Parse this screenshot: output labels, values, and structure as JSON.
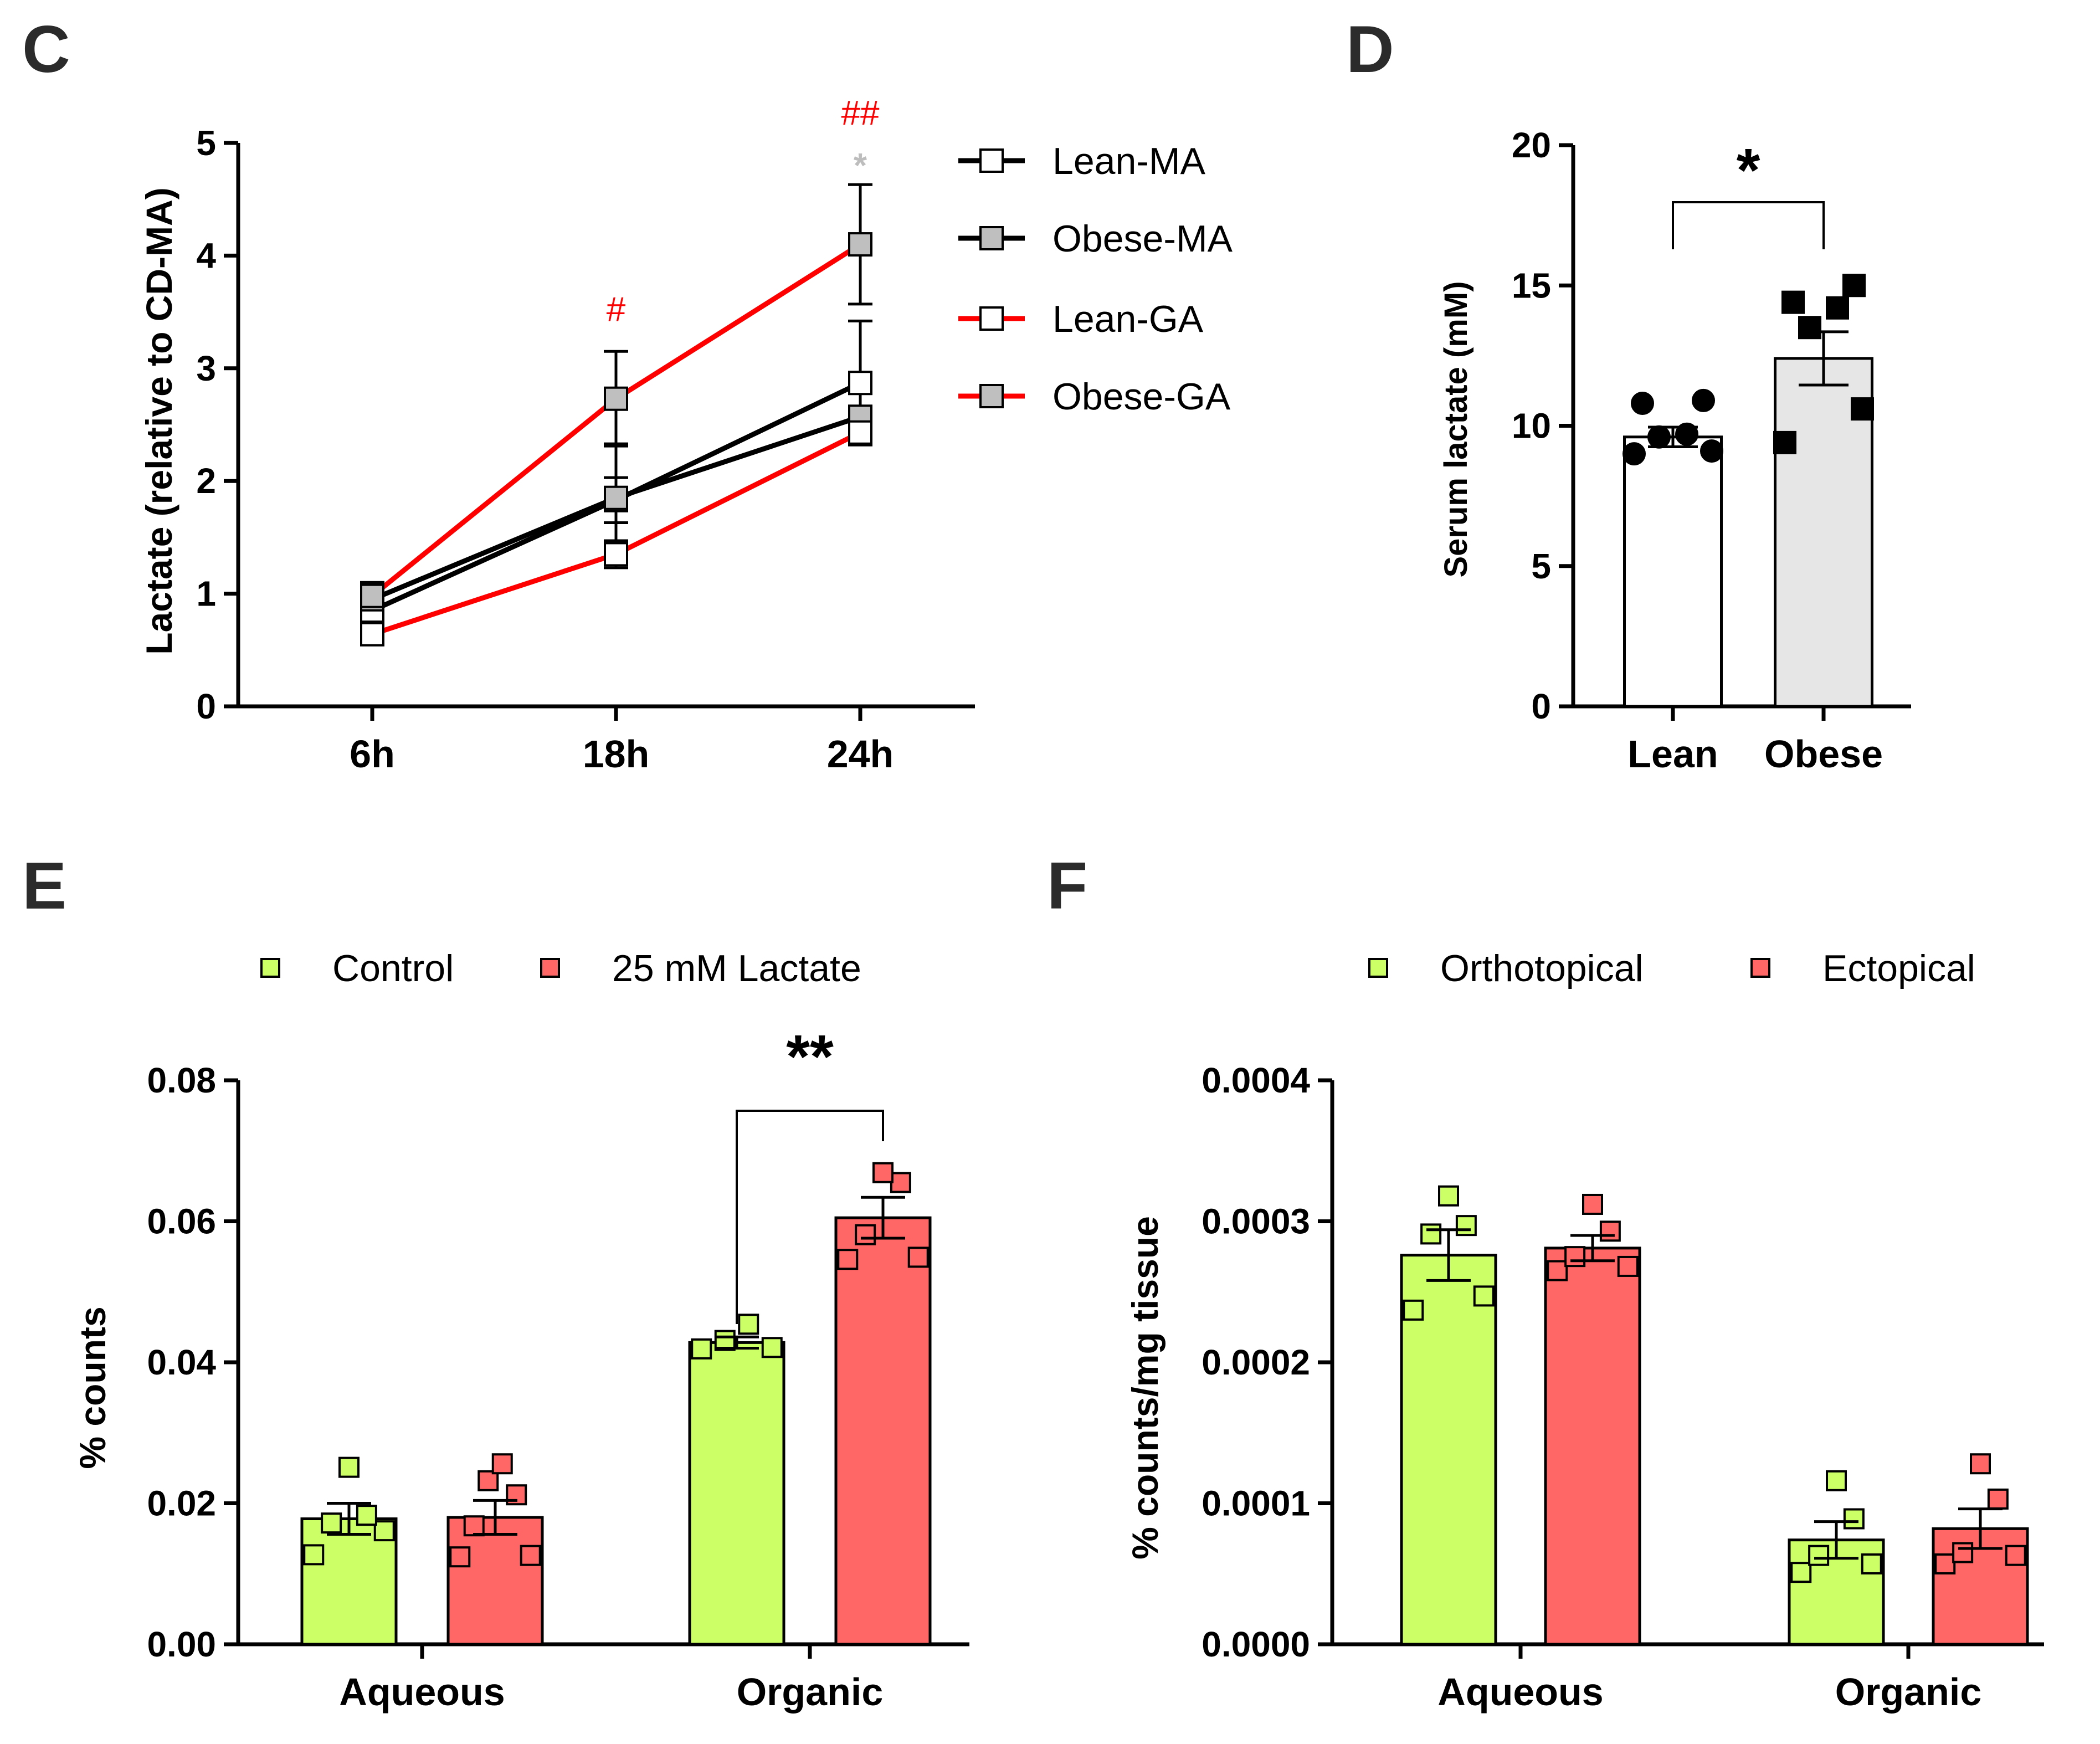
{
  "panels": {
    "C": {
      "letter": "C",
      "chart_data": {
        "type": "line",
        "categories": [
          "6h",
          "18h",
          "24h"
        ],
        "ylabel": "Lactate (relative to CD-MA)",
        "ylim": [
          0,
          5
        ],
        "yticks": [
          "0",
          "1",
          "2",
          "3",
          "4",
          "5"
        ],
        "series": [
          {
            "name": "Lean-MA",
            "values": [
              0.85,
              1.83,
              2.87
            ],
            "errors": [
              0.12,
              0.2,
              0.55
            ],
            "line_color": "#000000",
            "marker_fill": "#ffffff"
          },
          {
            "name": "Obese-MA",
            "values": [
              0.95,
              1.85,
              2.57
            ],
            "errors": [
              0.15,
              0.48,
              0.25
            ],
            "line_color": "#000000",
            "marker_fill": "#bfbfbf"
          },
          {
            "name": "Lean-GA",
            "values": [
              0.64,
              1.35,
              2.43
            ],
            "errors": [
              0.08,
              0.12,
              0.1
            ],
            "line_color": "#ff0000",
            "marker_fill": "#ffffff"
          },
          {
            "name": "Obese-GA",
            "values": [
              0.98,
              2.73,
              4.1
            ],
            "errors": [
              0.1,
              0.42,
              0.53
            ],
            "line_color": "#ff0000",
            "marker_fill": "#bfbfbf"
          }
        ],
        "annotations": [
          {
            "text": "#",
            "category": "18h",
            "color": "#ff0000"
          },
          {
            "text": "##",
            "category": "24h",
            "color": "#ff0000"
          },
          {
            "text": "*",
            "category": "24h",
            "color": "#bdbdbd"
          }
        ]
      }
    },
    "D": {
      "letter": "D",
      "chart_data": {
        "type": "bar",
        "categories": [
          "Lean",
          "Obese"
        ],
        "values": [
          9.6,
          12.4
        ],
        "errors": [
          0.35,
          0.95
        ],
        "bar_colors": [
          "#ffffff",
          "#e6e6e6"
        ],
        "points": [
          [
            9.0,
            9.1,
            9.6,
            9.7,
            10.8,
            10.9
          ],
          [
            9.4,
            10.6,
            13.5,
            14.2,
            14.4,
            15.0
          ]
        ],
        "point_markers": [
          "circle",
          "square"
        ],
        "point_color": "#000000",
        "ylabel": "Serum lactate (mM)",
        "ylim": [
          0,
          20
        ],
        "yticks": [
          "0",
          "5",
          "10",
          "15",
          "20"
        ],
        "significance": "*"
      }
    },
    "E": {
      "letter": "E",
      "chart_data": {
        "type": "bar",
        "categories": [
          "Aqueous",
          "Organic"
        ],
        "series": [
          {
            "name": "Control",
            "color": "#ccff66",
            "values": [
              0.0178,
              0.0428
            ],
            "errors": [
              0.0022,
              0.0008
            ],
            "points": [
              [
                0.0127,
                0.0161,
                0.0172,
                0.0183,
                0.0251
              ],
              [
                0.0419,
                0.0421,
                0.0431,
                0.0454
              ]
            ]
          },
          {
            "name": "25 mM Lactate",
            "color": "#ff6666",
            "values": [
              0.018,
              0.0605
            ],
            "errors": [
              0.0024,
              0.0029
            ],
            "points": [
              [
                0.0124,
                0.0126,
                0.0168,
                0.0212,
                0.0232,
                0.0256
              ],
              [
                0.0546,
                0.0549,
                0.0581,
                0.0655,
                0.0669
              ]
            ]
          }
        ],
        "ylabel": "% counts",
        "ylim": [
          0,
          0.08
        ],
        "yticks": [
          "0.00",
          "0.02",
          "0.04",
          "0.06",
          "0.08"
        ],
        "significance": "**"
      }
    },
    "F": {
      "letter": "F",
      "chart_data": {
        "type": "bar",
        "categories": [
          "Aqueous",
          "Organic"
        ],
        "series": [
          {
            "name": "Orthotopical",
            "color": "#ccff66",
            "values": [
              0.000276,
              7.4e-05
            ],
            "errors": [
              1.8e-05,
              1.3e-05
            ],
            "points": [
              [
                0.000237,
                0.000247,
                0.000291,
                0.000297,
                0.000318
              ],
              [
                5.1e-05,
                5.7e-05,
                6.3e-05,
                8.9e-05,
                0.000116
              ]
            ]
          },
          {
            "name": "Ectopical",
            "color": "#ff6666",
            "values": [
              0.000281,
              8.2e-05
            ],
            "errors": [
              9e-06,
              1.4e-05
            ],
            "points": [
              [
                0.000265,
                0.000268,
                0.000275,
                0.000293,
                0.000312
              ],
              [
                5.7e-05,
                6.3e-05,
                6.5e-05,
                0.000103,
                0.000128
              ]
            ]
          }
        ],
        "ylabel": "% counts/mg tissue",
        "ylim": [
          0,
          0.0004
        ],
        "yticks": [
          "0.0000",
          "0.0001",
          "0.0002",
          "0.0003",
          "0.0004"
        ]
      }
    }
  }
}
